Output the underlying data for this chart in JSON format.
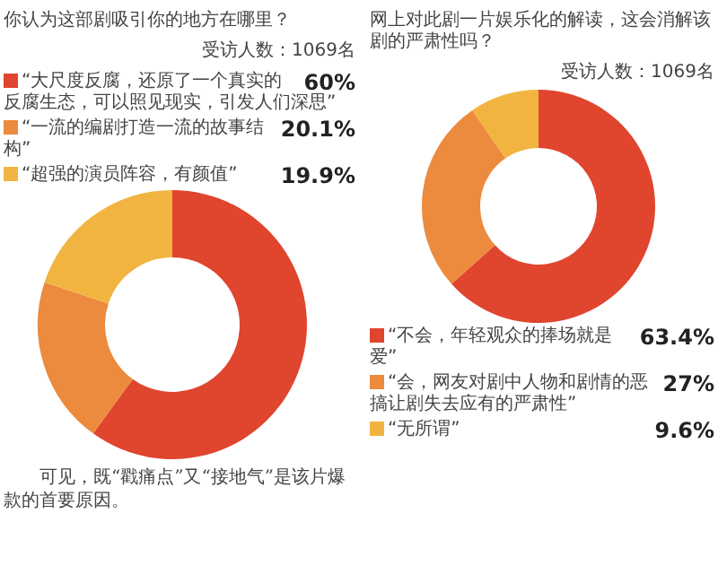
{
  "chart_data": [
    {
      "type": "donut",
      "title": "你认为这部剧吸引你的地方在哪里？",
      "subtitle": "受访人数：1069名",
      "categories": [
        "“大尺度反腐，还原了一个真实的反腐生态，可以照见现实，引发人们深思”",
        "“一流的编剧打造一流的故事结构”",
        "“超强的演员阵容，有颜值”"
      ],
      "values": [
        60,
        20.1,
        19.9
      ],
      "colors": [
        "#e0452e",
        "#ec8a3e",
        "#f2b441"
      ],
      "value_labels": [
        "60%",
        "20.1%",
        "19.9%"
      ],
      "legend": "top",
      "annotations": [
        "可见，既“戳痛点”又“接地气”是该片爆款的首要原因。"
      ]
    },
    {
      "type": "donut",
      "title": "网上对此剧一片娱乐化的解读，这会消解该剧的严肃性吗？",
      "subtitle": "受访人数：1069名",
      "categories": [
        "“不会，年轻观众的捧场就是爱”",
        "“会，网友对剧中人物和剧情的恶搞让剧失去应有的严肃性”",
        "“无所谓”"
      ],
      "values": [
        63.4,
        27,
        9.6
      ],
      "colors": [
        "#e0452e",
        "#ec8a3e",
        "#f2b441"
      ],
      "value_labels": [
        "63.4%",
        "27%",
        "9.6%"
      ],
      "legend": "bottom"
    }
  ]
}
